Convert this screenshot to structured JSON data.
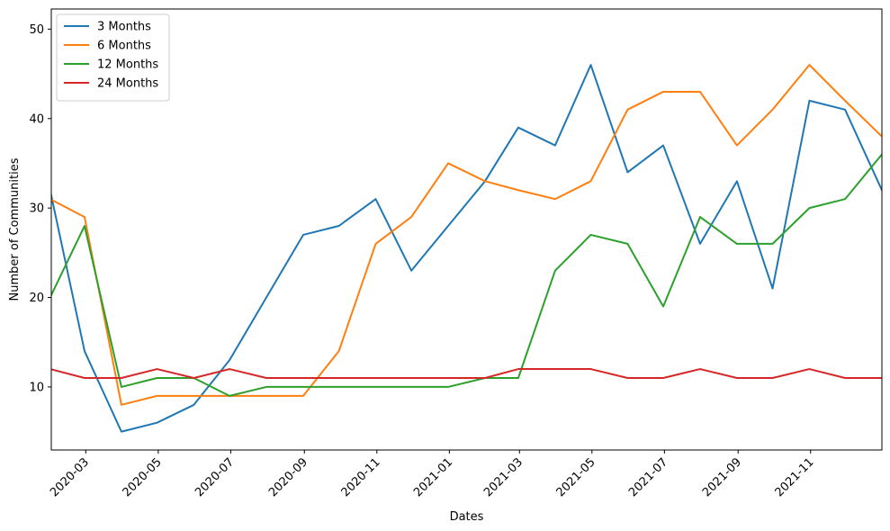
{
  "chart_data": {
    "type": "line",
    "xlabel": "Dates",
    "ylabel": "Number of Communities",
    "xlim": [
      "2020-02-01",
      "2021-12-31"
    ],
    "ylim": [
      2.95,
      52.25
    ],
    "yticks": [
      10,
      20,
      30,
      40,
      50
    ],
    "xticks": [
      "2020-03",
      "2020-05",
      "2020-07",
      "2020-09",
      "2020-11",
      "2021-01",
      "2021-03",
      "2021-05",
      "2021-07",
      "2021-09",
      "2021-11"
    ],
    "legend_position": "top-left",
    "grid": false,
    "x": [
      "2020-01-31",
      "2020-02-29",
      "2020-03-31",
      "2020-04-30",
      "2020-05-31",
      "2020-06-30",
      "2020-07-31",
      "2020-08-31",
      "2020-09-30",
      "2020-10-31",
      "2020-11-30",
      "2020-12-31",
      "2021-01-31",
      "2021-02-28",
      "2021-03-31",
      "2021-04-30",
      "2021-05-31",
      "2021-06-30",
      "2021-07-31",
      "2021-08-31",
      "2021-09-30",
      "2021-10-31",
      "2021-11-30",
      "2021-12-31"
    ],
    "series": [
      {
        "name": "3 Months",
        "color": "#1f77b4",
        "values": [
          32,
          14,
          5,
          6,
          8,
          13,
          20,
          27,
          28,
          31,
          23,
          28,
          33,
          39,
          37,
          46,
          34,
          37,
          26,
          33,
          21,
          42,
          41,
          32
        ]
      },
      {
        "name": "6 Months",
        "color": "#ff7f0e",
        "values": [
          31,
          29,
          8,
          9,
          9,
          9,
          9,
          9,
          14,
          26,
          29,
          35,
          33,
          32,
          31,
          33,
          41,
          43,
          43,
          37,
          41,
          46,
          42,
          38
        ]
      },
      {
        "name": "12 Months",
        "color": "#2ca02c",
        "values": [
          20,
          28,
          10,
          11,
          11,
          9,
          10,
          10,
          10,
          10,
          10,
          10,
          11,
          11,
          23,
          27,
          26,
          19,
          29,
          26,
          26,
          30,
          31,
          36
        ]
      },
      {
        "name": "24 Months",
        "color": "#d62728",
        "values": [
          12,
          11,
          11,
          12,
          11,
          12,
          11,
          11,
          11,
          11,
          11,
          11,
          11,
          12,
          12,
          12,
          11,
          11,
          12,
          11,
          11,
          12,
          11,
          11
        ]
      }
    ]
  }
}
